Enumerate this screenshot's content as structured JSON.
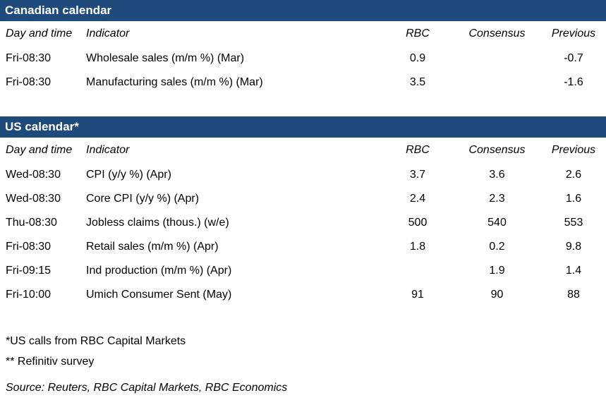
{
  "colors": {
    "header_bar": "#1F4B7C",
    "header_bar_text": "#FFFFFF",
    "text": "#000000"
  },
  "canadian_calendar": {
    "title": "Canadian calendar",
    "columns": [
      "Day and time",
      "Indicator",
      "RBC",
      "Consensus",
      "Previous"
    ],
    "rows": [
      {
        "day": "Fri-08:30",
        "indicator": "Wholesale sales (m/m %) (Mar)",
        "rbc": "0.9",
        "consensus": "",
        "previous": "-0.7"
      },
      {
        "day": "Fri-08:30",
        "indicator": "Manufacturing sales (m/m %) (Mar)",
        "rbc": "3.5",
        "consensus": "",
        "previous": "-1.6"
      }
    ]
  },
  "us_calendar": {
    "title": "US calendar*",
    "columns": [
      "Day and time",
      "Indicator",
      "RBC",
      "Consensus",
      "Previous"
    ],
    "rows": [
      {
        "day": "Wed-08:30",
        "indicator": "CPI (y/y %) (Apr)",
        "rbc": "3.7",
        "consensus": "3.6",
        "previous": "2.6"
      },
      {
        "day": "Wed-08:30",
        "indicator": "Core CPI (y/y %) (Apr)",
        "rbc": "2.4",
        "consensus": "2.3",
        "previous": "1.6"
      },
      {
        "day": "Thu-08:30",
        "indicator": "Jobless claims (thous.) (w/e)",
        "rbc": "500",
        "consensus": "540",
        "previous": "553"
      },
      {
        "day": "Fri-08:30",
        "indicator": "Retail sales (m/m %) (Apr)",
        "rbc": "1.8",
        "consensus": "0.2",
        "previous": "9.8"
      },
      {
        "day": "Fri-09:15",
        "indicator": "Ind production (m/m %) (Apr)",
        "rbc": "",
        "consensus": "1.9",
        "previous": "1.4"
      },
      {
        "day": "Fri-10:00",
        "indicator": "Umich Consumer Sent (May)",
        "rbc": "91",
        "consensus": "90",
        "previous": "88"
      }
    ]
  },
  "footnotes": {
    "us_calls": "*US calls from RBC Capital Markets",
    "refinitiv": "** Refinitiv survey",
    "source": "Source: Reuters, RBC Capital Markets, RBC Economics"
  }
}
